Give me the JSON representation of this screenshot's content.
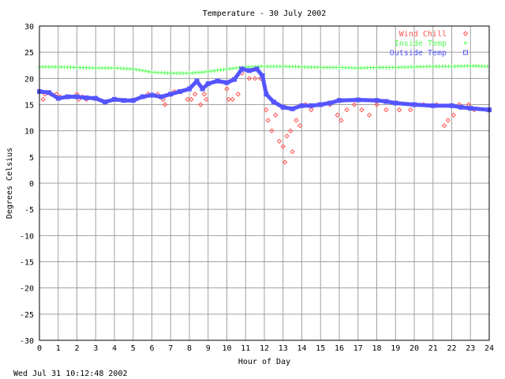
{
  "chart_data": {
    "type": "scatter",
    "title": "Temperature - 30 July 2002",
    "xlabel": "Hour of Day",
    "ylabel": "Degrees Celsius",
    "xlim": [
      0,
      24
    ],
    "ylim": [
      -30,
      30
    ],
    "x_ticks": [
      0,
      1,
      2,
      3,
      4,
      5,
      6,
      7,
      8,
      9,
      10,
      11,
      12,
      13,
      14,
      15,
      16,
      17,
      18,
      19,
      20,
      21,
      22,
      23,
      24
    ],
    "y_ticks": [
      30,
      25,
      20,
      15,
      10,
      5,
      0,
      -5,
      -10,
      -15,
      -20,
      -25,
      -30
    ],
    "grid": true,
    "legend_position": "top-right",
    "footer": "Wed Jul 31 10:12:48 2002",
    "series": [
      {
        "name": "Wind Chill",
        "marker": "diamond",
        "color": "#ff5555",
        "points": [
          [
            0.1,
            17.5
          ],
          [
            0.2,
            16.0
          ],
          [
            0.3,
            17.0
          ],
          [
            0.6,
            17.0
          ],
          [
            0.9,
            17.0
          ],
          [
            1.1,
            16.5
          ],
          [
            2.0,
            17.0
          ],
          [
            2.1,
            16.0
          ],
          [
            2.3,
            16.5
          ],
          [
            2.5,
            16.0
          ],
          [
            5.8,
            17.0
          ],
          [
            6.3,
            17.0
          ],
          [
            6.6,
            16.0
          ],
          [
            6.7,
            15.0
          ],
          [
            7.2,
            17.5
          ],
          [
            7.5,
            17.5
          ],
          [
            7.9,
            16.0
          ],
          [
            8.1,
            16.0
          ],
          [
            8.3,
            17.0
          ],
          [
            8.6,
            15.0
          ],
          [
            8.8,
            17.0
          ],
          [
            8.9,
            16.0
          ],
          [
            10.0,
            18.0
          ],
          [
            10.1,
            16.0
          ],
          [
            10.3,
            16.0
          ],
          [
            10.6,
            17.0
          ],
          [
            10.8,
            21.0
          ],
          [
            11.2,
            20.0
          ],
          [
            11.5,
            20.0
          ],
          [
            11.8,
            20.0
          ],
          [
            12.1,
            14.0
          ],
          [
            12.2,
            12.0
          ],
          [
            12.4,
            10.0
          ],
          [
            12.6,
            13.0
          ],
          [
            12.8,
            8.0
          ],
          [
            13.0,
            7.0
          ],
          [
            13.1,
            4.0
          ],
          [
            13.2,
            9.0
          ],
          [
            13.4,
            10.0
          ],
          [
            13.5,
            6.0
          ],
          [
            13.7,
            12.0
          ],
          [
            13.9,
            11.0
          ],
          [
            14.2,
            15.0
          ],
          [
            14.5,
            14.0
          ],
          [
            15.0,
            15.0
          ],
          [
            15.5,
            15.0
          ],
          [
            15.9,
            13.0
          ],
          [
            16.1,
            12.0
          ],
          [
            16.4,
            14.0
          ],
          [
            16.8,
            15.0
          ],
          [
            17.2,
            14.0
          ],
          [
            17.6,
            13.0
          ],
          [
            18.0,
            15.0
          ],
          [
            18.5,
            14.0
          ],
          [
            19.2,
            14.0
          ],
          [
            19.8,
            14.0
          ],
          [
            20.5,
            15.0
          ],
          [
            21.2,
            15.0
          ],
          [
            21.6,
            11.0
          ],
          [
            21.8,
            12.0
          ],
          [
            22.1,
            13.0
          ],
          [
            22.4,
            15.0
          ],
          [
            22.9,
            15.0
          ],
          [
            23.2,
            14.0
          ]
        ]
      },
      {
        "name": "Inside Temp",
        "marker": "plus",
        "color": "#55ff55",
        "points": [
          [
            0,
            22.2
          ],
          [
            1,
            22.2
          ],
          [
            2,
            22.1
          ],
          [
            3,
            22.0
          ],
          [
            4,
            22.0
          ],
          [
            5,
            21.8
          ],
          [
            6,
            21.2
          ],
          [
            7,
            21.0
          ],
          [
            8,
            21.0
          ],
          [
            9,
            21.3
          ],
          [
            10,
            21.8
          ],
          [
            11,
            22.2
          ],
          [
            12,
            22.3
          ],
          [
            13,
            22.3
          ],
          [
            14,
            22.2
          ],
          [
            15,
            22.1
          ],
          [
            16,
            22.1
          ],
          [
            17,
            22.0
          ],
          [
            18,
            22.1
          ],
          [
            19,
            22.1
          ],
          [
            20,
            22.2
          ],
          [
            21,
            22.3
          ],
          [
            22,
            22.3
          ],
          [
            23,
            22.4
          ],
          [
            23.9,
            22.3
          ]
        ]
      },
      {
        "name": "Outside Temp",
        "marker": "square",
        "color": "#5555ff",
        "points": [
          [
            0,
            17.5
          ],
          [
            0.5,
            17.3
          ],
          [
            1,
            16.2
          ],
          [
            1.5,
            16.5
          ],
          [
            2,
            16.5
          ],
          [
            2.5,
            16.3
          ],
          [
            3,
            16.2
          ],
          [
            3.5,
            15.5
          ],
          [
            4,
            16.0
          ],
          [
            4.5,
            15.8
          ],
          [
            5,
            15.8
          ],
          [
            5.5,
            16.5
          ],
          [
            6,
            16.8
          ],
          [
            6.5,
            16.5
          ],
          [
            7,
            17.0
          ],
          [
            7.5,
            17.5
          ],
          [
            8,
            18.0
          ],
          [
            8.4,
            19.5
          ],
          [
            8.7,
            18.0
          ],
          [
            9,
            19.0
          ],
          [
            9.5,
            19.5
          ],
          [
            10,
            19.2
          ],
          [
            10.4,
            19.8
          ],
          [
            10.8,
            21.8
          ],
          [
            11.2,
            21.5
          ],
          [
            11.6,
            21.8
          ],
          [
            11.9,
            20.5
          ],
          [
            12.1,
            17.0
          ],
          [
            12.5,
            15.5
          ],
          [
            13,
            14.5
          ],
          [
            13.5,
            14.2
          ],
          [
            14,
            14.8
          ],
          [
            14.5,
            14.8
          ],
          [
            15,
            15.0
          ],
          [
            15.5,
            15.3
          ],
          [
            16,
            15.8
          ],
          [
            17,
            15.9
          ],
          [
            18,
            15.8
          ],
          [
            18.5,
            15.6
          ],
          [
            19,
            15.3
          ],
          [
            20,
            15.0
          ],
          [
            21,
            14.8
          ],
          [
            22,
            14.8
          ],
          [
            22.5,
            14.5
          ],
          [
            23,
            14.3
          ],
          [
            24,
            14.0
          ]
        ]
      }
    ]
  }
}
